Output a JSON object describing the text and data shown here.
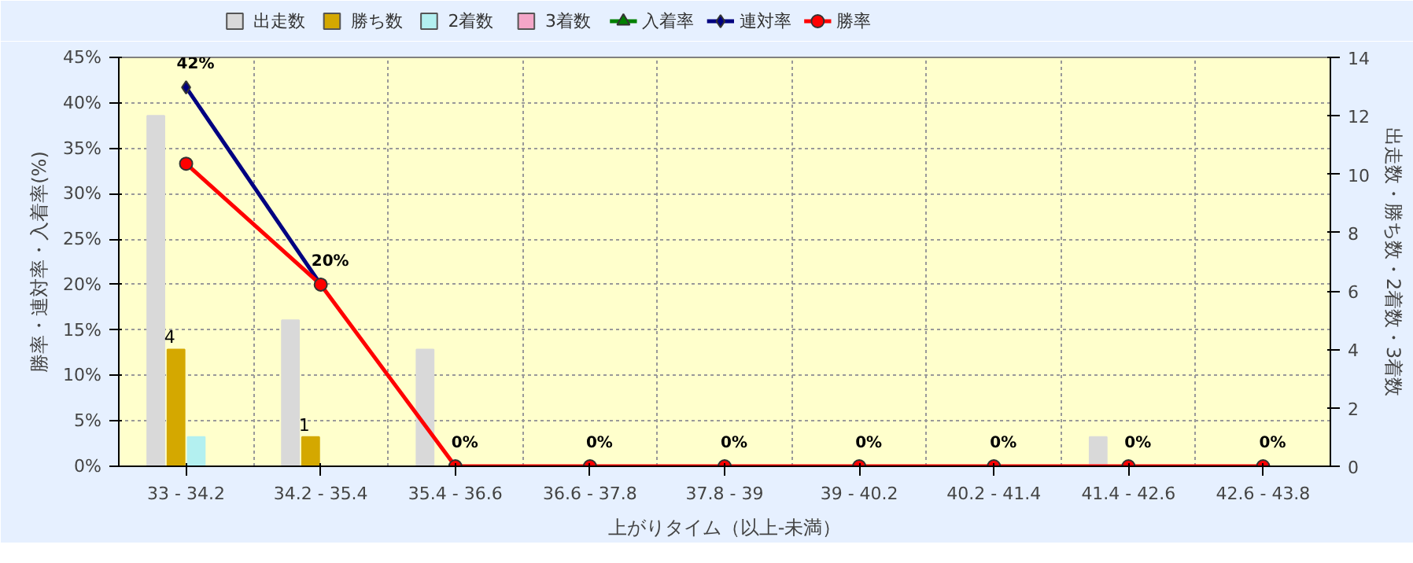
{
  "chart_data": {
    "type": "bar",
    "xlabel": "上がりタイム（以上-未満）",
    "ylabel": "勝率・連対率・入着率(%)",
    "y2label": "出走数・勝ち数・2着数・3着数",
    "categories": [
      "33 - 34.2",
      "34.2 - 35.4",
      "35.4 - 36.6",
      "36.6 - 37.8",
      "37.8 - 39",
      "39 - 40.2",
      "40.2 - 41.4",
      "41.4 - 42.6",
      "42.6 - 43.8"
    ],
    "series": [
      {
        "name": "出走数",
        "color": "#d9d9d9",
        "axis": "y2",
        "values": [
          12,
          5,
          4,
          0,
          0,
          0,
          0,
          1,
          0
        ]
      },
      {
        "name": "勝ち数",
        "color": "#d4a800",
        "axis": "y2",
        "values": [
          4,
          1,
          0,
          0,
          0,
          0,
          0,
          0,
          0
        ],
        "value_labels": [
          "4",
          "1",
          null,
          null,
          null,
          null,
          null,
          null,
          null
        ]
      },
      {
        "name": "2着数",
        "color": "#b3f0f0",
        "axis": "y2",
        "values": [
          1,
          0,
          0,
          0,
          0,
          0,
          0,
          0,
          0
        ]
      },
      {
        "name": "3着数",
        "color": "#f4a6c8",
        "axis": "y2",
        "values": [
          0,
          0,
          0,
          0,
          0,
          0,
          0,
          0,
          0
        ]
      },
      {
        "name": "入着率",
        "type": "line",
        "color": "#008000",
        "marker": "triangle",
        "values": [
          null,
          null,
          null,
          null,
          null,
          null,
          null,
          null,
          null
        ]
      },
      {
        "name": "連対率",
        "type": "line",
        "color": "#000080",
        "marker": "diamond",
        "values": [
          41.7,
          20,
          null,
          null,
          null,
          null,
          null,
          null,
          null
        ],
        "value_labels": [
          "42%",
          "20%",
          null,
          null,
          null,
          null,
          null,
          null,
          null
        ]
      },
      {
        "name": "勝率",
        "type": "line",
        "color": "#ff0000",
        "marker": "circle",
        "values": [
          33.3,
          20,
          0,
          0,
          0,
          0,
          0,
          0,
          0
        ],
        "value_labels": [
          null,
          null,
          "0%",
          "0%",
          "0%",
          "0%",
          "0%",
          "0%",
          "0%"
        ]
      }
    ],
    "ylim": [
      0,
      45
    ],
    "yticks": [
      {
        "value": 0,
        "label": "0%"
      },
      {
        "value": 5,
        "label": "5%"
      },
      {
        "value": 10,
        "label": "10%"
      },
      {
        "value": 15,
        "label": "15%"
      },
      {
        "value": 20,
        "label": "20%"
      },
      {
        "value": 25,
        "label": "25%"
      },
      {
        "value": 30,
        "label": "30%"
      },
      {
        "value": 35,
        "label": "35%"
      },
      {
        "value": 40,
        "label": "40%"
      },
      {
        "value": 45,
        "label": "45%"
      }
    ],
    "y2lim": [
      0,
      14
    ],
    "y2ticks": [
      0,
      2,
      4,
      6,
      8,
      10,
      12,
      14
    ],
    "grid": true,
    "legend": "top left"
  }
}
